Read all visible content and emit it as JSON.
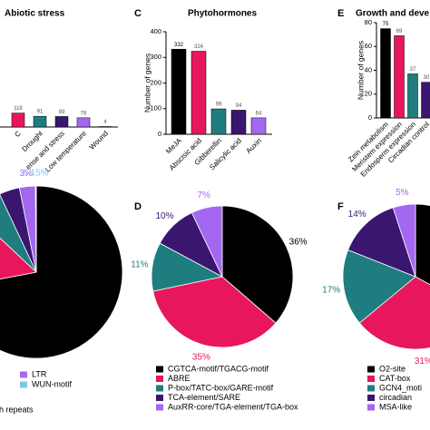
{
  "chart_data": [
    {
      "type": "bar",
      "title": "Abiotic stress",
      "categories": [
        "C",
        "Drought",
        "ense and stress",
        "Low temperature",
        "Wound"
      ],
      "values": [
        118,
        91,
        89,
        78,
        4
      ],
      "colors": [
        "#e8175d",
        "#1f7d80",
        "#3a1670",
        "#a367f0",
        "#a367f0"
      ],
      "ylim": [
        0,
        1000
      ]
    },
    {
      "type": "bar",
      "panel": "C",
      "title": "Phytohormones",
      "ylabel": "Number of genes",
      "categories": [
        "MeJA",
        "Abscisic acid",
        "Gibberellin",
        "Salicylic acid",
        "Auxin"
      ],
      "values": [
        332,
        324,
        99,
        94,
        64
      ],
      "colors": [
        "#000000",
        "#e8175d",
        "#1f7d80",
        "#3a1670",
        "#a367f0"
      ],
      "ylim": [
        0,
        400
      ],
      "yticks": [
        0,
        100,
        200,
        300,
        400
      ]
    },
    {
      "type": "bar",
      "panel": "E",
      "title": "Growth and deve",
      "ylabel": "Number of genes",
      "categories": [
        "Zein metabolism",
        "Meristem expression",
        "Endosperm expression",
        "Circadian control"
      ],
      "values": [
        75,
        69,
        37,
        30
      ],
      "colors": [
        "#000000",
        "#e8175d",
        "#1f7d80",
        "#3a1670"
      ],
      "ylim": [
        0,
        80
      ],
      "yticks": [
        0,
        20,
        40,
        60,
        80
      ]
    },
    {
      "type": "pie",
      "categories": [
        null,
        null,
        "h repeats",
        null,
        "LTR",
        "WUN-motif"
      ],
      "values": [
        72,
        15,
        6,
        3.85,
        3,
        0.15
      ],
      "value_labels": [
        null,
        null,
        null,
        null,
        "3%",
        "0.15%"
      ],
      "colors": [
        "#000000",
        "#e8175d",
        "#1f7d80",
        "#3a1670",
        "#a367f0",
        "#7ec8e8"
      ]
    },
    {
      "type": "pie",
      "panel": "D",
      "categories": [
        "CGTCA-motif/TGACG-motif",
        "ABRE",
        "P-box/TATC-box/GARE-motif",
        "TCA-element/SARE",
        "AuxRR-core/TGA-element/TGA-box"
      ],
      "values": [
        36,
        35,
        11,
        10,
        7
      ],
      "value_labels": [
        "36%",
        "35%",
        "11%",
        "10%",
        "7%"
      ],
      "colors": [
        "#000000",
        "#e8175d",
        "#1f7d80",
        "#3a1670",
        "#a367f0"
      ]
    },
    {
      "type": "pie",
      "panel": "F",
      "categories": [
        "O2-site",
        "CAT-box",
        "GCN4_moti",
        "circadian",
        "MSA-like"
      ],
      "values": [
        33,
        31,
        17,
        14,
        5
      ],
      "value_labels": [
        null,
        "31%",
        "17%",
        "14%",
        "5%"
      ],
      "colors": [
        "#000000",
        "#e8175d",
        "#1f7d80",
        "#3a1670",
        "#a367f0"
      ]
    }
  ]
}
